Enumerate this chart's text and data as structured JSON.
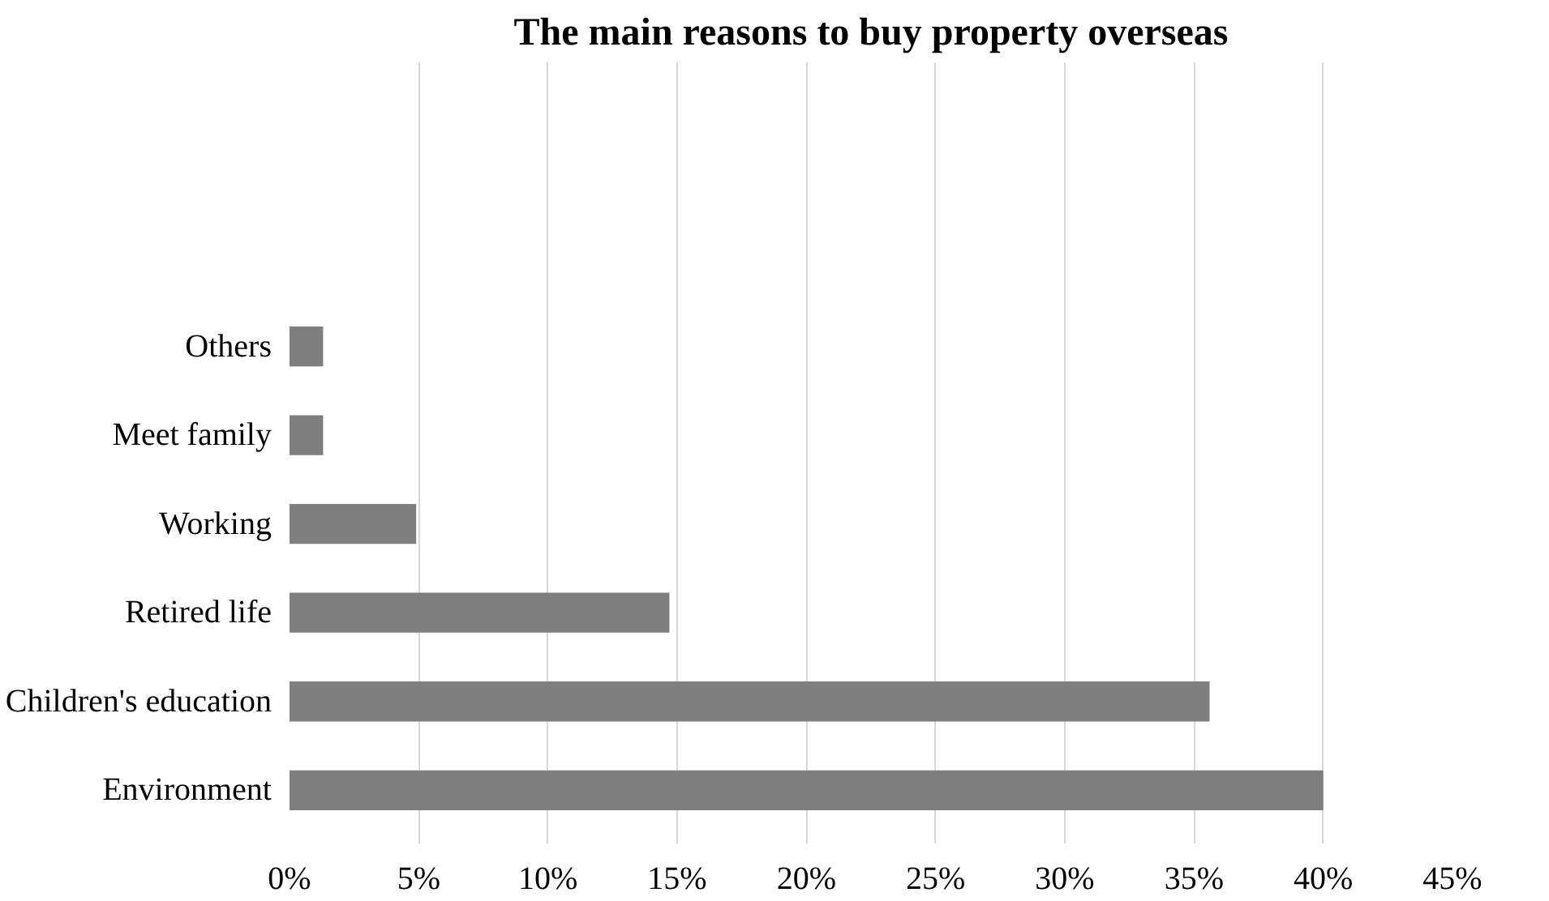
{
  "chart_data": {
    "type": "bar",
    "orientation": "horizontal",
    "title": "The main reasons to buy property overseas",
    "categories": [
      "Others",
      "Meet family",
      "Working",
      "Retired life",
      "Children's education",
      "Environment"
    ],
    "values": [
      1.3,
      1.3,
      4.9,
      14.7,
      35.6,
      40
    ],
    "color": "#7f7f7f",
    "xlim": [
      0,
      45
    ],
    "xticks": [
      {
        "value": 0,
        "label": "0%"
      },
      {
        "value": 5,
        "label": "5%"
      },
      {
        "value": 10,
        "label": "10%"
      },
      {
        "value": 15,
        "label": "15%"
      },
      {
        "value": 20,
        "label": "20%"
      },
      {
        "value": 25,
        "label": "25%"
      },
      {
        "value": 30,
        "label": "30%"
      },
      {
        "value": 35,
        "label": "35%"
      },
      {
        "value": 40,
        "label": "40%"
      },
      {
        "value": 45,
        "label": "45%"
      }
    ],
    "grid": "x"
  }
}
